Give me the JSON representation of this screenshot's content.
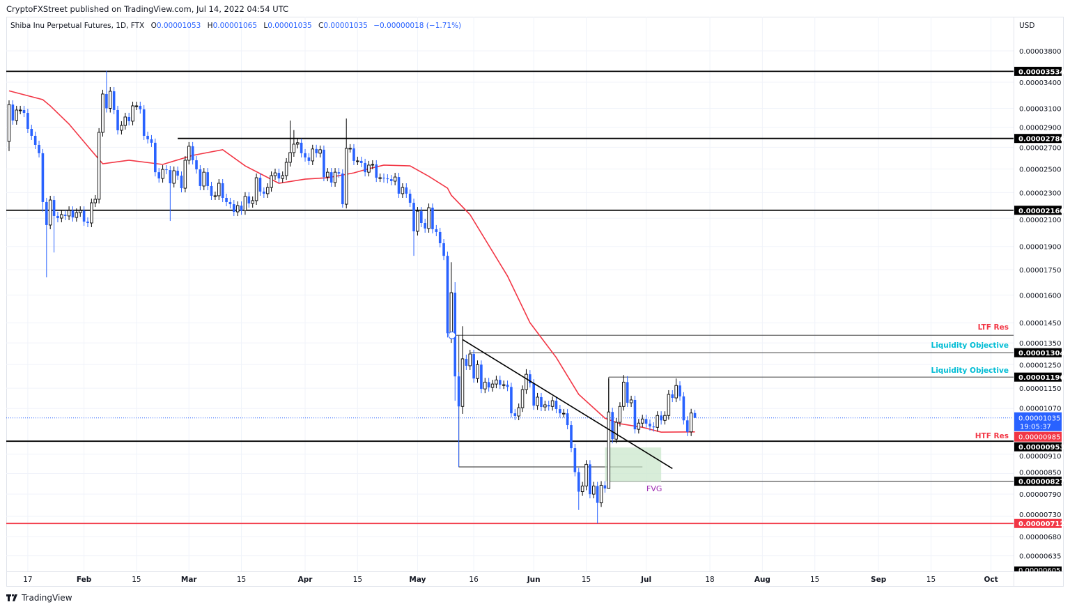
{
  "header": {
    "published": "CryptoFXStreet published on TradingView.com, Jul 14, 2022 04:54 UTC"
  },
  "legend": {
    "symbol": "Shiba Inu Perpetual Futures, 1D, FTX",
    "o_label": "O",
    "o": "0.00001053",
    "h_label": "H",
    "h": "0.00001065",
    "l_label": "L",
    "l": "0.00001035",
    "c_label": "C",
    "c": "0.00001035",
    "change": "−0.00000018 (−1.71%)"
  },
  "price_axis": {
    "currency": "USD",
    "ticks": [
      "0.00003800",
      "0.00003400",
      "0.00003100",
      "0.00002900",
      "0.00002700",
      "0.00002500",
      "0.00002300",
      "0.00002100",
      "0.00001900",
      "0.00001750",
      "0.00001600",
      "0.00001450",
      "0.00001350",
      "0.00001250",
      "0.00001150",
      "0.00001070",
      "0.00000910",
      "0.00000850",
      "0.00000790",
      "0.00000730",
      "0.00000680",
      "0.00000635"
    ],
    "current_price": "0.00001035",
    "countdown": "19:05:37",
    "ma_value": "0.00000985"
  },
  "time_axis": {
    "ticks": [
      {
        "label": "17",
        "date": "2022-01-17",
        "bold": false
      },
      {
        "label": "Feb",
        "date": "2022-02-01",
        "bold": true
      },
      {
        "label": "15",
        "date": "2022-02-15",
        "bold": false
      },
      {
        "label": "Mar",
        "date": "2022-03-01",
        "bold": true
      },
      {
        "label": "15",
        "date": "2022-03-15",
        "bold": false
      },
      {
        "label": "Apr",
        "date": "2022-04-01",
        "bold": true
      },
      {
        "label": "15",
        "date": "2022-04-15",
        "bold": false
      },
      {
        "label": "May",
        "date": "2022-05-01",
        "bold": true
      },
      {
        "label": "16",
        "date": "2022-05-16",
        "bold": false
      },
      {
        "label": "Jun",
        "date": "2022-06-01",
        "bold": true
      },
      {
        "label": "15",
        "date": "2022-06-15",
        "bold": false
      },
      {
        "label": "Jul",
        "date": "2022-07-01",
        "bold": true
      },
      {
        "label": "18",
        "date": "2022-07-18",
        "bold": false
      },
      {
        "label": "Aug",
        "date": "2022-08-01",
        "bold": true
      },
      {
        "label": "15",
        "date": "2022-08-15",
        "bold": false
      },
      {
        "label": "Sep",
        "date": "2022-09-01",
        "bold": true
      },
      {
        "label": "15",
        "date": "2022-09-15",
        "bold": false
      },
      {
        "label": "Oct",
        "date": "2022-10-01",
        "bold": true
      }
    ]
  },
  "footer": {
    "brand": "TradingView"
  },
  "colors": {
    "up_fill": "#ffffff",
    "up_border": "#000000",
    "down": "#2962ff",
    "ma": "#f23645",
    "level": "#000000",
    "support_red": "#f23645",
    "ltf_label": "#f23645",
    "liquidity_label": "#00bcd4",
    "fvg_label": "#9c27b0",
    "fvg_fill": "#c8e6c9",
    "current_price": "#2962ff"
  },
  "chart_data": {
    "type": "candlestick",
    "title": "Shiba Inu Perpetual Futures, 1D, FTX",
    "scale": "log",
    "ylim": [
      6.05e-06,
      4e-05
    ],
    "xlim": [
      "2022-01-11",
      "2022-10-06"
    ],
    "grid": true,
    "candles": {
      "from": "2022-01-12",
      "to": "2022-07-14",
      "first_open": 2.757e-05,
      "close": [
        3.142e-05,
        2.969e-05,
        3.081e-05,
        3.081e-05,
        3.05e-05,
        2.882e-05,
        2.812e-05,
        2.723e-05,
        2.644e-05,
        2.224e-05,
        2.05e-05,
        2.24e-05,
        2.117e-05,
        2.101e-05,
        2.127e-05,
        2.117e-05,
        2.158e-05,
        2.106e-05,
        2.142e-05,
        2.158e-05,
        2.075e-05,
        2.065e-05,
        2.218e-05,
        2.246e-05,
        2.847e-05,
        3.261e-05,
        3.1e-05,
        3.293e-05,
        3.081e-05,
        2.868e-05,
        2.918e-05,
        3.006e-05,
        2.962e-05,
        3.127e-05,
        3.127e-05,
        3.089e-05,
        2.812e-05,
        2.778e-05,
        2.744e-05,
        2.472e-05,
        2.418e-05,
        2.497e-05,
        2.491e-05,
        2.377e-05,
        2.485e-05,
        2.442e-05,
        2.336e-05,
        2.579e-05,
        2.71e-05,
        2.579e-05,
        2.497e-05,
        2.354e-05,
        2.472e-05,
        2.354e-05,
        2.274e-05,
        2.274e-05,
        2.377e-05,
        2.257e-05,
        2.224e-05,
        2.207e-05,
        2.148e-05,
        2.196e-05,
        2.158e-05,
        2.269e-05,
        2.213e-05,
        2.235e-05,
        2.424e-05,
        2.308e-05,
        2.291e-05,
        2.342e-05,
        2.442e-05,
        2.466e-05,
        2.418e-05,
        2.442e-05,
        2.56e-05,
        2.65e-05,
        2.73e-05,
        2.744e-05,
        2.644e-05,
        2.605e-05,
        2.573e-05,
        2.684e-05,
        2.644e-05,
        2.677e-05,
        2.43e-05,
        2.472e-05,
        2.383e-05,
        2.472e-05,
        2.46e-05,
        2.207e-05,
        2.69e-05,
        2.69e-05,
        2.573e-05,
        2.573e-05,
        2.554e-05,
        2.472e-05,
        2.535e-05,
        2.541e-05,
        2.424e-05,
        2.424e-05,
        2.418e-05,
        2.412e-05,
        2.395e-05,
        2.43e-05,
        2.291e-05,
        2.342e-05,
        2.291e-05,
        2.218e-05,
        2.005e-05,
        2.153e-05,
        2.065e-05,
        2.025e-05,
        2.18e-05,
        2.02e-05,
        2e-05,
        1.922e-05,
        1.838e-05,
        1.397e-05,
        1.613e-05,
        1.199e-05,
        1.078e-05,
        1.276e-05,
        1.245e-05,
        1.298e-05,
        1.19e-05,
        1.25e-05,
        1.147e-05,
        1.175e-05,
        1.153e-05,
        1.167e-05,
        1.184e-05,
        1.164e-05,
        1.164e-05,
        1.155e-05,
        1.052e-05,
        1.042e-05,
        1.073e-05,
        1.144e-05,
        1.208e-05,
        1.17e-05,
        1.081e-05,
        1.114e-05,
        1.076e-05,
        1.084e-05,
        1.078e-05,
        1.1e-05,
        1.068e-05,
        1.052e-05,
        1.052e-05,
        1.009e-05,
        9.3e-06,
        8.54e-06,
        7.97e-06,
        8.13e-06,
        8.78e-06,
        7.9e-06,
        8.13e-06,
        7.66e-06,
        8.15e-06,
        8.06e-06,
        1.057e-05,
        9.6e-06,
        1.019e-05,
        1.078e-05,
        1.175e-05,
        1.092e-05,
        1.103e-05,
        9.94e-06,
        1.016e-05,
        1.031e-05,
        1.014e-05,
        1.004e-05,
        1.001e-05,
        1.044e-05,
        1.026e-05,
        1.044e-05,
        1.125e-05,
        1.111e-05,
        1.161e-05,
        1.117e-05,
        1.026e-05,
        9.85e-06,
        1.053e-05,
        1.035e-05
      ],
      "wicks": [
        {
          "date": "2022-01-12",
          "low": 2.664e-05
        },
        {
          "date": "2022-01-21",
          "low": 2.15e-05
        },
        {
          "date": "2022-01-22",
          "low": 1.703e-05
        },
        {
          "date": "2022-01-24",
          "low": 1.86e-05
        },
        {
          "date": "2022-02-07",
          "high": 3.54e-05
        },
        {
          "date": "2022-02-24",
          "low": 2.08e-05
        },
        {
          "date": "2022-03-28",
          "high": 2.969e-05
        },
        {
          "date": "2022-03-29",
          "high": 2.87e-05
        },
        {
          "date": "2022-04-11",
          "low": 2.18e-05
        },
        {
          "date": "2022-04-12",
          "high": 2.99e-05
        },
        {
          "date": "2022-04-30",
          "low": 1.838e-05
        },
        {
          "date": "2022-05-10",
          "high": 1.797e-05,
          "low": 1.35e-05
        },
        {
          "date": "2022-05-11",
          "high": 1.674e-05,
          "low": 1.1e-05
        },
        {
          "date": "2022-05-12",
          "low": 8.7e-06
        },
        {
          "date": "2022-05-13",
          "high": 1.432e-05,
          "low": 1.05e-05
        },
        {
          "date": "2022-05-30",
          "high": 1.23e-05
        },
        {
          "date": "2022-06-13",
          "low": 7.47e-06
        },
        {
          "date": "2022-06-18",
          "low": 7.12e-06
        },
        {
          "date": "2022-06-21",
          "high": 1.19e-05,
          "low": 8.1e-06
        },
        {
          "date": "2022-06-25",
          "high": 1.205e-05
        },
        {
          "date": "2022-06-26",
          "high": 1.2e-05
        },
        {
          "date": "2022-07-09",
          "high": 1.19e-05
        },
        {
          "date": "2022-07-14",
          "high": 1.065e-05,
          "low": 1.035e-05
        }
      ]
    },
    "moving_average": [
      [
        "2022-01-12",
        3.298e-05
      ],
      [
        "2022-01-21",
        3.197e-05
      ],
      [
        "2022-01-23",
        3.127e-05
      ],
      [
        "2022-01-28",
        2.932e-05
      ],
      [
        "2022-02-02",
        2.71e-05
      ],
      [
        "2022-02-06",
        2.547e-05
      ],
      [
        "2022-02-13",
        2.579e-05
      ],
      [
        "2022-02-22",
        2.541e-05
      ],
      [
        "2022-03-02",
        2.624e-05
      ],
      [
        "2022-03-10",
        2.677e-05
      ],
      [
        "2022-03-16",
        2.528e-05
      ],
      [
        "2022-03-25",
        2.377e-05
      ],
      [
        "2022-04-01",
        2.412e-05
      ],
      [
        "2022-04-07",
        2.424e-05
      ],
      [
        "2022-04-14",
        2.466e-05
      ],
      [
        "2022-04-18",
        2.503e-05
      ],
      [
        "2022-04-22",
        2.535e-05
      ],
      [
        "2022-04-29",
        2.528e-05
      ],
      [
        "2022-05-04",
        2.436e-05
      ],
      [
        "2022-05-09",
        2.336e-05
      ],
      [
        "2022-05-10",
        2.278e-05
      ],
      [
        "2022-05-15",
        2.127e-05
      ],
      [
        "2022-05-25",
        1.711e-05
      ],
      [
        "2022-05-31",
        1.45e-05
      ],
      [
        "2022-06-07",
        1.282e-05
      ],
      [
        "2022-06-13",
        1.125e-05
      ],
      [
        "2022-06-20",
        1.034e-05
      ],
      [
        "2022-06-24",
        1.014e-05
      ],
      [
        "2022-06-30",
        1.001e-05
      ],
      [
        "2022-07-05",
        9.84e-06
      ],
      [
        "2022-07-14",
        9.85e-06
      ]
    ],
    "levels": [
      {
        "price": 3.534e-05,
        "label": "0.00003534",
        "from": null,
        "style": "black"
      },
      {
        "price": 2.786e-05,
        "label": "0.00002786",
        "from": "2022-02-26",
        "style": "black"
      },
      {
        "price": 2.16e-05,
        "label": "0.00002160",
        "from": null,
        "style": "black"
      },
      {
        "price": 1.304e-05,
        "label": "0.00001304",
        "from": "2022-05-15",
        "style": "gray"
      },
      {
        "price": 1.196e-05,
        "label": "0.00001196",
        "from": "2022-06-21",
        "style": "gray"
      },
      {
        "price": 9.53e-06,
        "label": "0.00000953",
        "from": null,
        "style": "black"
      },
      {
        "price": 8.27e-06,
        "label": "0.00000827",
        "from": "2022-06-21",
        "style": "gray"
      },
      {
        "price": 7.12e-06,
        "label": "0.00000712",
        "from": null,
        "style": "red"
      },
      {
        "price": 1.387e-05,
        "label": null,
        "from": "2022-05-10",
        "style": "gray"
      }
    ],
    "partial_bottom_label": "0.00000605",
    "annotations": {
      "ltf_res": "LTF Res",
      "liquidity_1": "Liquidity Objective",
      "liquidity_2": "Liquidity Objective",
      "htf_res": "HTF Res",
      "fvg": "FVG"
    },
    "trendline": {
      "from": [
        "2022-05-13",
        1.366e-05
      ],
      "to": [
        "2022-07-08",
        8.65e-06
      ]
    },
    "range_line": {
      "from": [
        "2022-05-12",
        8.7e-06
      ],
      "to": [
        "2022-06-30",
        8.7e-06
      ]
    },
    "fvg_box": {
      "from": "2022-06-20",
      "to": "2022-07-05",
      "top": 9.32e-06,
      "bottom": 8.26e-06
    }
  }
}
